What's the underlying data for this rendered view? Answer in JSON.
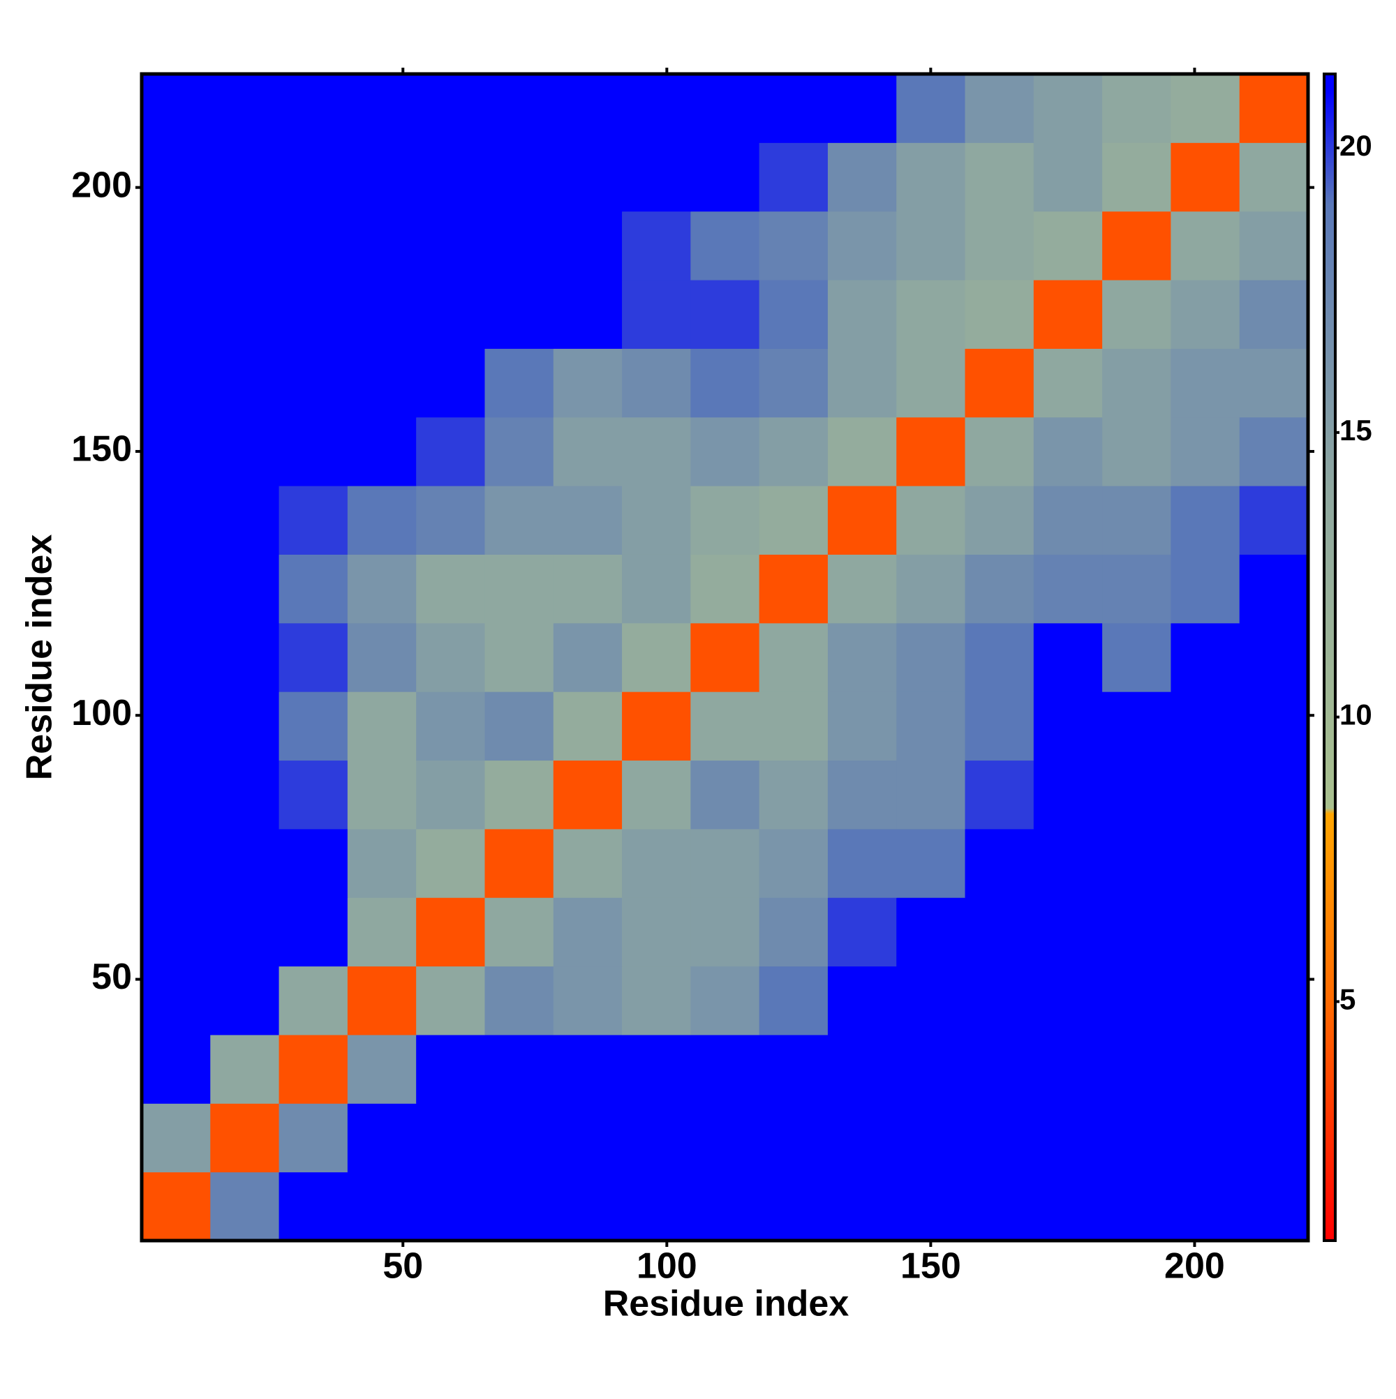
{
  "chart_data": {
    "type": "heatmap",
    "x_label": "Residue index",
    "y_label": "Residue index",
    "xbins": [
      0.5,
      13.5,
      26.5,
      39.5,
      52.5,
      65.5,
      78.5,
      91.5,
      104.5,
      117.5,
      130.5,
      143.5,
      156.5,
      169.5,
      182.5,
      195.5,
      208.5,
      221.5
    ],
    "ybins": [
      0.5,
      13.5,
      26.5,
      39.5,
      52.5,
      65.5,
      78.5,
      91.5,
      104.5,
      117.5,
      130.5,
      143.5,
      156.5,
      169.5,
      182.5,
      195.5,
      208.5,
      221.5
    ],
    "z": [
      [
        4,
        18,
        21,
        21,
        21,
        21,
        21,
        21,
        21,
        21,
        21,
        21,
        21,
        21,
        21,
        21,
        21
      ],
      [
        15,
        4,
        17,
        21,
        21,
        21,
        21,
        21,
        21,
        21,
        21,
        21,
        21,
        21,
        21,
        21,
        21
      ],
      [
        21,
        14,
        4,
        16,
        21,
        21,
        21,
        21,
        21,
        21,
        21,
        21,
        21,
        21,
        21,
        21,
        21
      ],
      [
        21,
        21,
        14,
        4,
        14,
        17,
        16,
        15,
        16,
        19,
        21,
        21,
        21,
        21,
        21,
        21,
        21
      ],
      [
        21,
        21,
        21,
        14,
        4,
        14,
        16,
        15,
        15,
        17,
        20,
        21,
        21,
        21,
        21,
        21,
        21
      ],
      [
        21,
        21,
        21,
        15,
        13,
        4,
        14,
        15,
        15,
        16,
        19,
        19,
        21,
        21,
        21,
        21,
        21
      ],
      [
        21,
        21,
        20,
        14,
        15,
        13,
        4,
        14,
        17,
        15,
        17,
        17,
        20,
        21,
        21,
        21,
        21
      ],
      [
        21,
        21,
        19,
        14,
        16,
        17,
        13,
        4,
        14,
        14,
        16,
        17,
        19,
        21,
        21,
        21,
        21
      ],
      [
        21,
        21,
        20,
        17,
        15,
        14,
        16,
        13,
        4,
        14,
        16,
        17,
        19,
        21,
        19,
        21,
        21
      ],
      [
        21,
        21,
        19,
        16,
        14,
        14,
        14,
        15,
        13,
        4,
        14,
        15,
        17,
        18,
        18,
        19,
        21
      ],
      [
        21,
        21,
        20,
        19,
        18,
        16,
        16,
        15,
        14,
        13,
        4,
        14,
        15,
        17,
        17,
        19,
        20
      ],
      [
        21,
        21,
        21,
        21,
        20,
        18,
        15,
        15,
        16,
        15,
        13,
        4,
        14,
        16,
        15,
        16,
        18
      ],
      [
        21,
        21,
        21,
        21,
        21,
        19,
        16,
        17,
        19,
        18,
        15,
        14,
        4,
        14,
        15,
        16,
        16
      ],
      [
        21,
        21,
        21,
        21,
        21,
        21,
        21,
        20,
        20,
        19,
        15,
        14,
        13,
        4,
        14,
        15,
        17
      ],
      [
        21,
        21,
        21,
        21,
        21,
        21,
        21,
        20,
        19,
        18,
        16,
        15,
        14,
        13,
        4,
        14,
        15
      ],
      [
        21,
        21,
        21,
        21,
        21,
        21,
        21,
        21,
        21,
        20,
        17,
        15,
        14,
        15,
        13,
        4,
        14
      ],
      [
        21,
        21,
        21,
        21,
        21,
        21,
        21,
        21,
        21,
        21,
        21,
        19,
        16,
        15,
        14,
        13,
        4
      ]
    ],
    "xlim": [
      0.5,
      221.5
    ],
    "ylim": [
      0.5,
      221.5
    ],
    "xticks": [
      50,
      100,
      150,
      200
    ],
    "yticks": [
      50,
      100,
      150,
      200
    ],
    "zlim": [
      0.8,
      21.3
    ],
    "zticks": [
      5,
      10,
      15,
      20
    ],
    "colorscale": [
      [
        0.8,
        "#ff0000"
      ],
      [
        5,
        "#ff6a00"
      ],
      [
        8.3,
        "#ffa500"
      ],
      [
        8.4,
        "#a9c08e"
      ],
      [
        14,
        "#8fa8a0"
      ],
      [
        19,
        "#5a78b8"
      ],
      [
        21,
        "#0000ff"
      ]
    ]
  }
}
